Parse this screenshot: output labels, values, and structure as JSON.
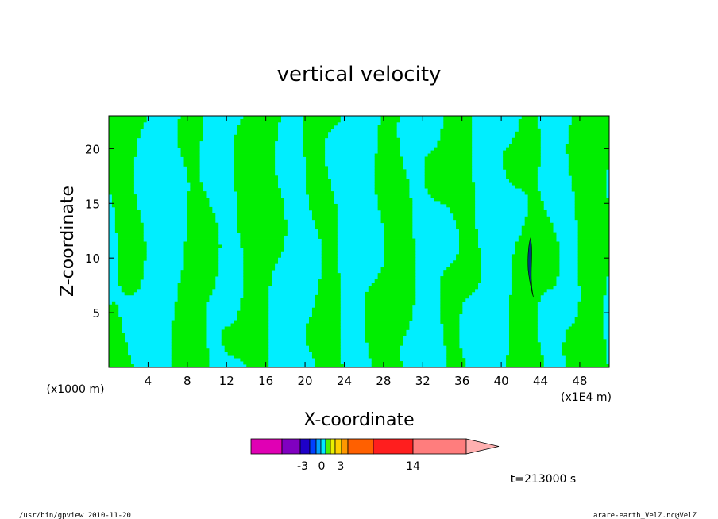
{
  "chart_data": {
    "type": "heatmap",
    "title": "vertical velocity",
    "xlabel": "X-coordinate",
    "ylabel": "Z-coordinate",
    "x_unit": "(x1000 m)",
    "x_scale": "(x1E4 m)",
    "xlim": [
      0,
      51
    ],
    "ylim": [
      0,
      23
    ],
    "xticks": [
      4,
      8,
      12,
      16,
      20,
      24,
      28,
      32,
      36,
      40,
      44,
      48
    ],
    "yticks": [
      5,
      10,
      15,
      20
    ],
    "colorbar": {
      "orientation": "horizontal",
      "tick_labels": [
        "-3",
        "0",
        "3",
        "14"
      ],
      "colors": [
        "#e000b4",
        "#8000c0",
        "#1e00c8",
        "#0040ff",
        "#00a0ff",
        "#00e8ff",
        "#50f000",
        "#e8f000",
        "#ffd000",
        "#ff9800",
        "#ff6000",
        "#ff1e1e",
        "#ff7d7d",
        "#ffb0b0"
      ]
    },
    "colors": {
      "negative": "#00eeff",
      "positive": "#00ee00",
      "contour": "#000000"
    },
    "time_label": "t=213000 s"
  },
  "footer": {
    "left": "/usr/bin/gpview   2010-11-20",
    "right": "arare-earth_VelZ.nc@VelZ"
  }
}
